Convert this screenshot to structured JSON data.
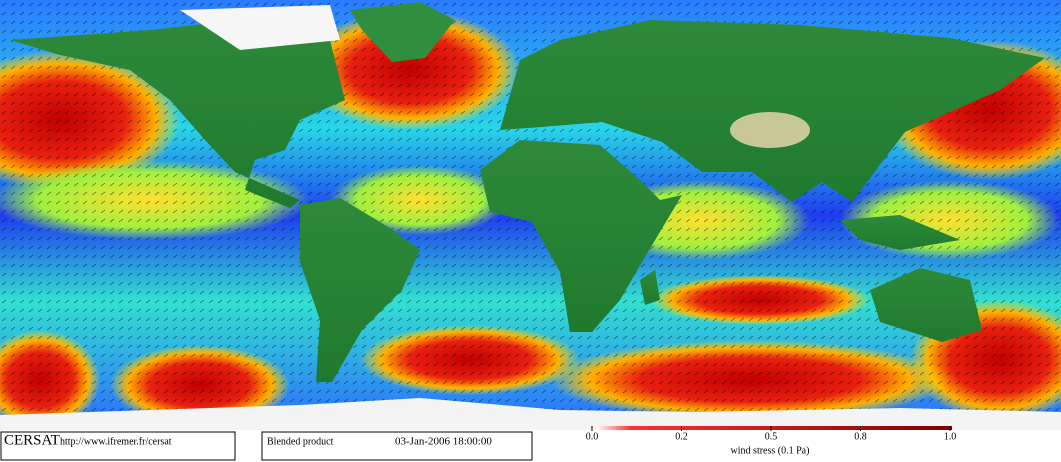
{
  "footer": {
    "logo": "CERSAT",
    "url": "http://www.ifremer.fr/cersat",
    "product": "Blended product",
    "date": "03-Jan-2006 18:00:00"
  },
  "colorbar": {
    "label": "wind stress (0.1 Pa)",
    "ticks": [
      {
        "value": 0,
        "label": "0.0"
      },
      0.2,
      0.5,
      0.8,
      {
        "value": 1,
        "label": "1.0"
      }
    ]
  }
}
